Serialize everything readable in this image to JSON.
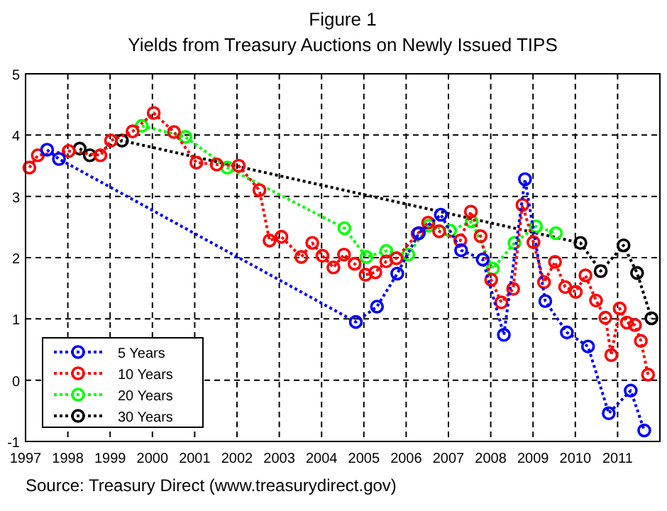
{
  "chart_data": {
    "type": "line",
    "title": "Figure 1",
    "subtitle": "Yields from Treasury Auctions on Newly Issued TIPS",
    "annotations": [
      "Source: Treasury Direct (www.treasurydirect.gov)"
    ],
    "xlim": [
      1997,
      2012
    ],
    "xticks": [
      1997,
      1998,
      1999,
      2000,
      2001,
      2002,
      2003,
      2004,
      2005,
      2006,
      2007,
      2008,
      2009,
      2010,
      2011
    ],
    "ylim": [
      -1,
      5
    ],
    "yticks": [
      -1,
      0,
      1,
      2,
      3,
      4,
      5
    ],
    "grid": true,
    "legend": "bottom left",
    "marker": "circle",
    "line_style": "dotted",
    "series": [
      {
        "name": "5 Years",
        "color": "#0000ff",
        "x": [
          1997.51,
          1997.79,
          2004.81,
          2005.31,
          2005.79,
          2006.3,
          2006.82,
          2007.3,
          2007.81,
          2008.31,
          2008.81,
          2009.29,
          2009.8,
          2010.3,
          2010.79,
          2011.31,
          2011.63
        ],
        "values": [
          3.76,
          3.61,
          0.95,
          1.2,
          1.74,
          2.4,
          2.7,
          2.12,
          1.97,
          0.74,
          3.28,
          1.29,
          0.78,
          0.55,
          -0.54,
          -0.17,
          -0.82
        ]
      },
      {
        "name": "10 Years",
        "color": "#ff0000",
        "x": [
          1997.09,
          1997.29,
          1998.02,
          1998.77,
          1999.02,
          1999.53,
          2000.03,
          2000.51,
          2001.04,
          2001.52,
          2002.04,
          2002.53,
          2002.77,
          2003.05,
          2003.52,
          2003.78,
          2004.02,
          2004.28,
          2004.53,
          2004.78,
          2005.04,
          2005.27,
          2005.53,
          2005.77,
          2006.27,
          2006.52,
          2006.78,
          2007.28,
          2007.53,
          2007.76,
          2008.01,
          2008.25,
          2008.53,
          2008.75,
          2009.01,
          2009.26,
          2009.52,
          2009.76,
          2010.01,
          2010.24,
          2010.49,
          2010.71,
          2010.85,
          2011.05,
          2011.22,
          2011.41,
          2011.55,
          2011.72
        ],
        "values": [
          3.47,
          3.67,
          3.74,
          3.67,
          3.91,
          4.06,
          4.36,
          4.05,
          3.55,
          3.52,
          3.5,
          3.1,
          2.28,
          2.34,
          2.01,
          2.24,
          2.03,
          1.84,
          2.05,
          1.9,
          1.72,
          1.76,
          1.94,
          1.99,
          2.39,
          2.57,
          2.43,
          2.28,
          2.75,
          2.35,
          1.64,
          1.27,
          1.49,
          2.86,
          2.25,
          1.6,
          1.93,
          1.52,
          1.44,
          1.71,
          1.3,
          1.02,
          0.41,
          1.17,
          0.94,
          0.9,
          0.64,
          0.09
        ]
      },
      {
        "name": "20 Years",
        "color": "#00ff00",
        "x": [
          1999.75,
          2000.78,
          2001.77,
          2004.54,
          2005.06,
          2005.53,
          2006.05,
          2006.54,
          2007.04,
          2007.55,
          2008.05,
          2008.56,
          2009.07,
          2009.54
        ],
        "values": [
          4.15,
          3.97,
          3.47,
          2.48,
          2.01,
          2.11,
          2.05,
          2.52,
          2.44,
          2.59,
          1.82,
          2.24,
          2.51,
          2.4
        ]
      },
      {
        "name": "30 Years",
        "color": "#000000",
        "x": [
          1998.28,
          1998.52,
          1999.28,
          2010.12,
          2010.6,
          2011.14,
          2011.46,
          2011.8
        ],
        "values": [
          3.78,
          3.67,
          3.91,
          2.24,
          1.78,
          2.2,
          1.75,
          1.01
        ]
      }
    ]
  }
}
